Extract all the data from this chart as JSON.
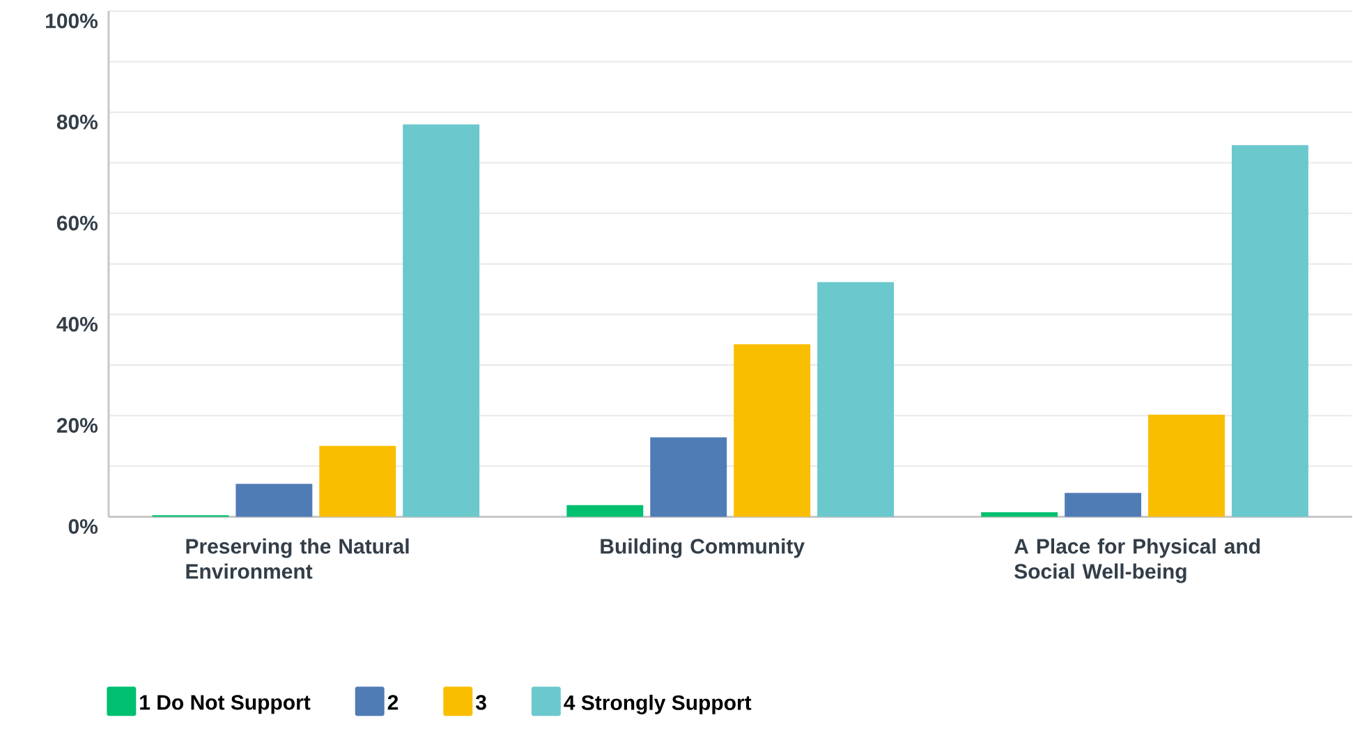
{
  "chart_data": {
    "type": "bar",
    "categories": [
      "Preserving the Natural Environment",
      "Building Community",
      "A Place for Physical and Social Well-being"
    ],
    "series": [
      {
        "name": "1 Do Not Support",
        "color": "#00bf6f",
        "values": [
          0.3,
          2.3,
          0.9
        ]
      },
      {
        "name": "2",
        "color": "#507cb6",
        "values": [
          6.5,
          15.7,
          4.7
        ]
      },
      {
        "name": "3",
        "color": "#f9be00",
        "values": [
          14,
          34.1,
          20.2
        ]
      },
      {
        "name": "4 Strongly Support",
        "color": "#6bc8cd",
        "values": [
          77.6,
          46.4,
          73.5
        ]
      }
    ],
    "ylim": [
      0,
      100
    ],
    "yticks": [
      {
        "value": 0,
        "label": "0%"
      },
      {
        "value": 10,
        "label": null
      },
      {
        "value": 20,
        "label": "20%"
      },
      {
        "value": 30,
        "label": null
      },
      {
        "value": 40,
        "label": "40%"
      },
      {
        "value": 50,
        "label": null
      },
      {
        "value": 60,
        "label": "60%"
      },
      {
        "value": 70,
        "label": null
      },
      {
        "value": 80,
        "label": "80%"
      },
      {
        "value": 90,
        "label": null
      },
      {
        "value": 100,
        "label": "100%"
      }
    ],
    "grid": "y",
    "legend": "bottom"
  }
}
